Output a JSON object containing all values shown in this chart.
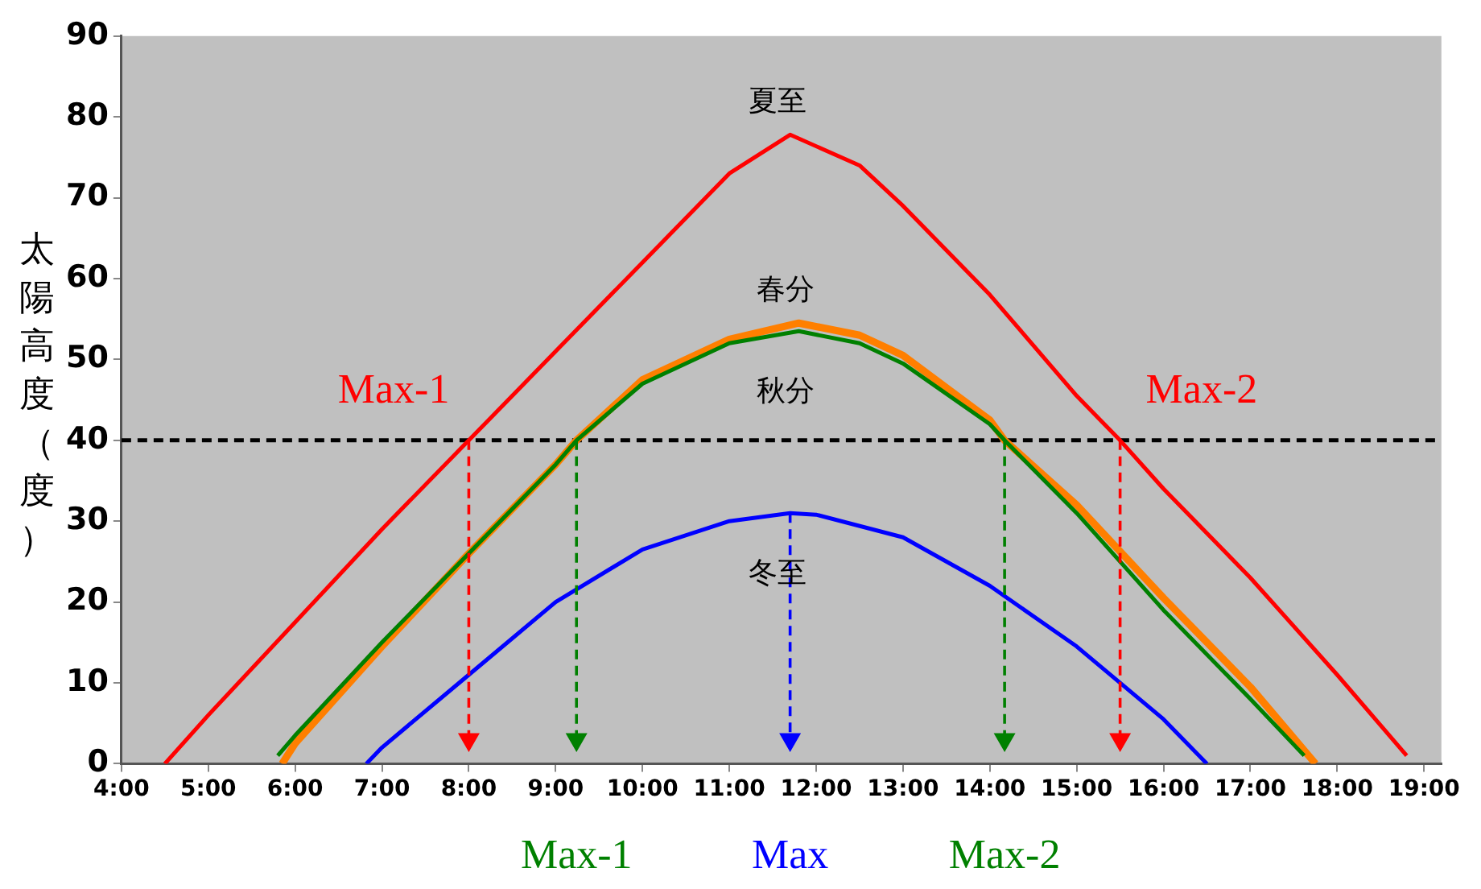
{
  "chart_data": {
    "type": "line",
    "ylabel": "太陽高度（度）",
    "xlim": [
      4,
      19.2
    ],
    "ylim": [
      0,
      90
    ],
    "xticks": [
      {
        "value": 4,
        "label": "4:00"
      },
      {
        "value": 5,
        "label": "5:00"
      },
      {
        "value": 6,
        "label": "6:00"
      },
      {
        "value": 7,
        "label": "7:00"
      },
      {
        "value": 8,
        "label": "8:00"
      },
      {
        "value": 9,
        "label": "9:00"
      },
      {
        "value": 10,
        "label": "10:00"
      },
      {
        "value": 11,
        "label": "11:00"
      },
      {
        "value": 12,
        "label": "12:00"
      },
      {
        "value": 13,
        "label": "13:00"
      },
      {
        "value": 14,
        "label": "14:00"
      },
      {
        "value": 15,
        "label": "15:00"
      },
      {
        "value": 16,
        "label": "16:00"
      },
      {
        "value": 17,
        "label": "17:00"
      },
      {
        "value": 18,
        "label": "18:00"
      },
      {
        "value": 19,
        "label": "19:00"
      }
    ],
    "yticks": [
      0,
      10,
      20,
      30,
      40,
      50,
      60,
      70,
      80,
      90
    ],
    "grid": false,
    "legend": false,
    "marker": "none",
    "line_style": "solid",
    "series": [
      {
        "name": "夏至",
        "color": "#ff0000",
        "x": [
          4.5,
          5,
          6,
          7,
          8,
          9,
          10,
          11,
          11.7,
          12.5,
          13,
          14,
          15,
          15.5,
          16,
          17,
          18,
          18.8
        ],
        "values": [
          0,
          6,
          17.5,
          29,
          40,
          51,
          62,
          73,
          77.8,
          74,
          69,
          58,
          45.5,
          40,
          34,
          23,
          11,
          1
        ]
      },
      {
        "name": "春分",
        "color": "#ff7f00",
        "x": [
          5.85,
          6,
          7,
          8,
          9,
          9.24,
          10,
          11,
          11.8,
          12.5,
          13,
          14,
          14.17,
          15,
          16,
          17,
          17.75
        ],
        "values": [
          0,
          2.5,
          14.5,
          26,
          37,
          40,
          47.5,
          52.5,
          54.5,
          53,
          50.5,
          42.5,
          40,
          32,
          20.5,
          9.5,
          0
        ]
      },
      {
        "name": "秋分",
        "color": "#008000",
        "x": [
          5.8,
          6,
          7,
          8,
          9,
          9.24,
          10,
          11,
          11.8,
          12.5,
          13,
          14,
          14.17,
          15,
          16,
          17,
          17.62
        ],
        "values": [
          1,
          3.5,
          15,
          26,
          37,
          40,
          47,
          52,
          53.5,
          52,
          49.5,
          42,
          40,
          31,
          19,
          8,
          1
        ]
      },
      {
        "name": "冬至",
        "color": "#0000ff",
        "x": [
          6.82,
          7,
          8,
          9,
          10,
          11,
          11.7,
          12,
          13,
          14,
          15,
          16,
          16.5
        ],
        "values": [
          0,
          2,
          11,
          20,
          26.5,
          30,
          31,
          30.8,
          28,
          22,
          14.5,
          5.5,
          0
        ]
      },
      {
        "color": "#ff0000",
        "line_style": "dashed",
        "marker": "triangle",
        "x": [
          8,
          8
        ],
        "values": [
          40,
          3
        ]
      },
      {
        "color": "#ff0000",
        "line_style": "dashed",
        "marker": "triangle",
        "x": [
          15.5,
          15.5
        ],
        "values": [
          40,
          3
        ]
      },
      {
        "color": "#008000",
        "line_style": "dashed",
        "marker": "triangle",
        "x": [
          9.24,
          9.24
        ],
        "values": [
          40,
          3
        ]
      },
      {
        "color": "#0000ff",
        "line_style": "dashed",
        "marker": "triangle",
        "x": [
          11.7,
          11.7
        ],
        "values": [
          31,
          3
        ]
      },
      {
        "color": "#008000",
        "line_style": "dashed",
        "marker": "triangle",
        "x": [
          14.17,
          14.17
        ],
        "values": [
          40,
          3
        ]
      }
    ],
    "ref_lines": [
      {
        "axis": "y",
        "value": 40,
        "color": "#000000",
        "line_style": "dashed"
      }
    ],
    "annotations": [
      "Max-1",
      "Max-2",
      "Max-1",
      "Max",
      "Max-2"
    ]
  }
}
